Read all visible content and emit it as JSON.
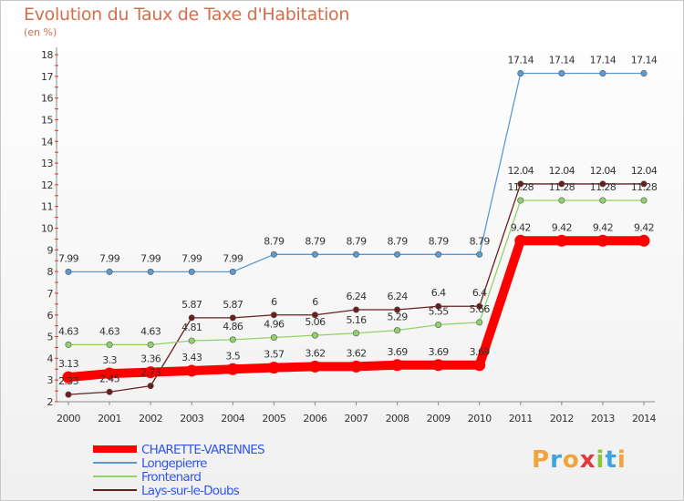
{
  "title": "Evolution du Taux de Taxe d'Habitation",
  "subtitle": "(en %)",
  "logo": {
    "p": "P",
    "r": "r",
    "o": "o",
    "x": "x",
    "i": "i",
    "t": "t",
    "i2": "i"
  },
  "chart_data": {
    "type": "line",
    "x": [
      "2000",
      "2001",
      "2002",
      "2003",
      "2004",
      "2005",
      "2006",
      "2007",
      "2008",
      "2009",
      "2010",
      "2011",
      "2012",
      "2013",
      "2014"
    ],
    "ylim": [
      2,
      18
    ],
    "yticks": [
      2,
      3,
      4,
      5,
      6,
      7,
      8,
      9,
      10,
      11,
      12,
      13,
      14,
      15,
      16,
      17,
      18
    ],
    "grid": false,
    "legend_position": "bottom-left",
    "series": [
      {
        "name": "Longepierre",
        "color": "#5b9bd5",
        "values": [
          7.99,
          7.99,
          7.99,
          7.99,
          7.99,
          8.79,
          8.79,
          8.79,
          8.79,
          8.79,
          8.79,
          17.14,
          17.14,
          17.14,
          17.14
        ],
        "labels": [
          "7.99",
          "7.99",
          "7.99",
          "7.99",
          "7.99",
          "8.79",
          "8.79",
          "8.79",
          "8.79",
          "8.79",
          "8.79",
          "17.14",
          "17.14",
          "17.14",
          "17.14"
        ]
      },
      {
        "name": "Lays-sur-le-Doubs",
        "color": "#6b1e1e",
        "values": [
          2.33,
          2.45,
          2.73,
          5.87,
          5.87,
          6,
          6,
          6.24,
          6.24,
          6.4,
          6.4,
          12.04,
          12.04,
          12.04,
          12.04
        ],
        "labels": [
          "2.33",
          "2.45",
          "2.73",
          "5.87",
          "5.87",
          "6",
          "6",
          "6.24",
          "6.24",
          "6.4",
          "6.4",
          "12.04",
          "12.04",
          "12.04",
          "12.04"
        ]
      },
      {
        "name": "Frontenard",
        "color": "#8fd36a",
        "values": [
          4.63,
          4.63,
          4.63,
          4.81,
          4.86,
          4.96,
          5.06,
          5.16,
          5.29,
          5.55,
          5.66,
          11.28,
          11.28,
          11.28,
          11.28
        ],
        "labels": [
          "4.63",
          "4.63",
          "4.63",
          "4.81",
          "4.86",
          "4.96",
          "5.06",
          "5.16",
          "5.29",
          "5.55",
          "5.66",
          "11.28",
          "11.28",
          "11.28",
          "11.28"
        ]
      },
      {
        "name": "CHARETTE-VARENNES",
        "color": "#ff0000",
        "values": [
          3.13,
          3.3,
          3.36,
          3.43,
          3.5,
          3.57,
          3.62,
          3.62,
          3.69,
          3.69,
          3.69,
          9.42,
          9.42,
          9.42,
          9.42
        ],
        "labels": [
          "3.13",
          "3.3",
          "3.36",
          "3.43",
          "3.5",
          "3.57",
          "3.62",
          "3.62",
          "3.69",
          "3.69",
          "3.69",
          "9.42",
          "9.42",
          "9.42",
          "9.42"
        ]
      }
    ],
    "legend": [
      {
        "name": "CHARETTE-VARENNES",
        "color": "#ff0000",
        "text_color": "#3355ee"
      },
      {
        "name": "Longepierre",
        "color": "#5b9bd5",
        "text_color": "#3355ee"
      },
      {
        "name": "Frontenard",
        "color": "#8fd36a",
        "text_color": "#3355ee"
      },
      {
        "name": "Lays-sur-le-Doubs",
        "color": "#6b1e1e",
        "text_color": "#3355ee"
      }
    ]
  }
}
